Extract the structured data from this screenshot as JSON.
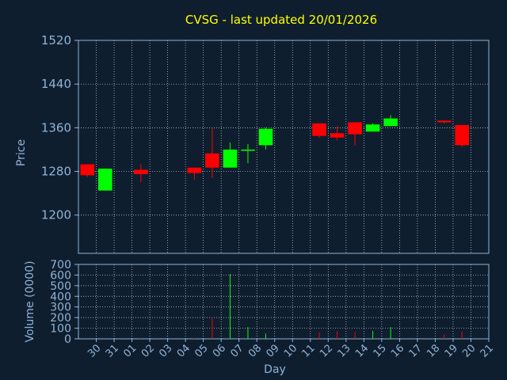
{
  "chart_data": {
    "type": "candlestick",
    "title": "CVSG - last updated 20/01/2026",
    "xlabel": "Day",
    "price_panel": {
      "ylabel": "Price",
      "ylim": [
        1130,
        1520
      ],
      "yticks": [
        "1520",
        "1440",
        "1360",
        "1280",
        "1200"
      ]
    },
    "volume_panel": {
      "ylabel": "Volume (0000)",
      "ylim": [
        0,
        700
      ],
      "yticks": [
        "700",
        "600",
        "500",
        "400",
        "300",
        "200",
        "100",
        "0"
      ]
    },
    "categories": [
      "30",
      "31",
      "01",
      "02",
      "03",
      "04",
      "05",
      "06",
      "07",
      "08",
      "09",
      "10",
      "11",
      "12",
      "13",
      "14",
      "15",
      "16",
      "17",
      "18",
      "19",
      "20",
      "21"
    ],
    "candles": [
      {
        "day": "30",
        "open": 1293,
        "high": 1293,
        "low": 1270,
        "close": 1273
      },
      {
        "day": "31",
        "open": 1245,
        "high": 1285,
        "low": 1245,
        "close": 1285
      },
      {
        "day": "02",
        "open": 1283,
        "high": 1293,
        "low": 1260,
        "close": 1275
      },
      {
        "day": "05",
        "open": 1287,
        "high": 1287,
        "low": 1265,
        "close": 1277
      },
      {
        "day": "06",
        "open": 1313,
        "high": 1360,
        "low": 1268,
        "close": 1287
      },
      {
        "day": "07",
        "open": 1287,
        "high": 1333,
        "low": 1287,
        "close": 1320
      },
      {
        "day": "08",
        "open": 1318,
        "high": 1330,
        "low": 1295,
        "close": 1320
      },
      {
        "day": "09",
        "open": 1328,
        "high": 1360,
        "low": 1320,
        "close": 1358
      },
      {
        "day": "12",
        "open": 1368,
        "high": 1368,
        "low": 1342,
        "close": 1345
      },
      {
        "day": "13",
        "open": 1350,
        "high": 1363,
        "low": 1337,
        "close": 1342
      },
      {
        "day": "14",
        "open": 1370,
        "high": 1370,
        "low": 1328,
        "close": 1348
      },
      {
        "day": "15",
        "open": 1353,
        "high": 1368,
        "low": 1353,
        "close": 1366
      },
      {
        "day": "16",
        "open": 1363,
        "high": 1383,
        "low": 1363,
        "close": 1377
      },
      {
        "day": "19",
        "open": 1373,
        "high": 1373,
        "low": 1368,
        "close": 1370
      },
      {
        "day": "20",
        "open": 1365,
        "high": 1365,
        "low": 1325,
        "close": 1328
      }
    ],
    "volume": [
      {
        "day": "30",
        "value": 0
      },
      {
        "day": "31",
        "value": 0
      },
      {
        "day": "02",
        "value": 5
      },
      {
        "day": "05",
        "value": 5
      },
      {
        "day": "06",
        "value": 190
      },
      {
        "day": "07",
        "value": 610
      },
      {
        "day": "08",
        "value": 110
      },
      {
        "day": "09",
        "value": 50
      },
      {
        "day": "12",
        "value": 60
      },
      {
        "day": "13",
        "value": 70
      },
      {
        "day": "14",
        "value": 65
      },
      {
        "day": "15",
        "value": 75
      },
      {
        "day": "16",
        "value": 110
      },
      {
        "day": "19",
        "value": 40
      },
      {
        "day": "20",
        "value": 70
      }
    ],
    "colors": {
      "background": "#0f1e2e",
      "up": "#00ff00",
      "down": "#ff0000",
      "grid": "#c8d4e0",
      "axis": "#8fb4d8",
      "title": "#ffff00"
    },
    "grid": true
  }
}
